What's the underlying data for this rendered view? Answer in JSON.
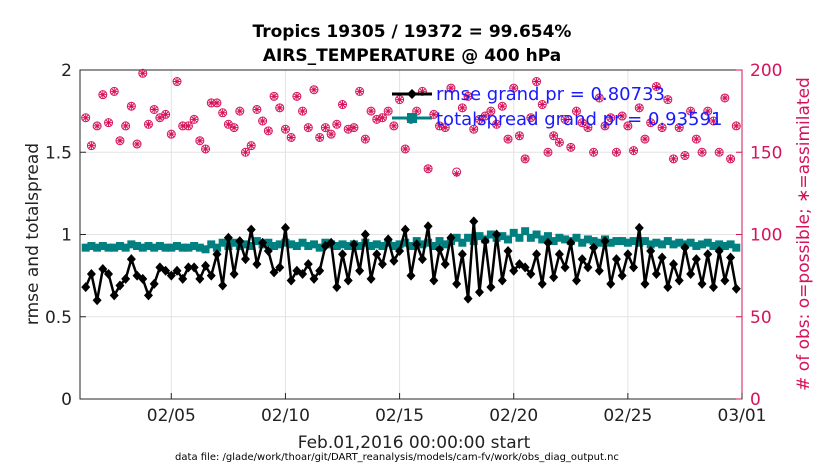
{
  "chart_data": {
    "type": "line",
    "title_line1": "Tropics 19305 / 19372 = 99.654%",
    "title_line2": "AIRS_TEMPERATURE @ 400 hPa",
    "ylabel_left": "rmse and totalspread",
    "ylabel_right": "# of obs: o=possible; ∗=assimilated",
    "xlabel": "Feb.01,2016 00:00:00 start",
    "footnote": "data file: /glade/work/thoar/git/DART_reanalysis/models/cam-fv/work/obs_diag_output.nc",
    "ylim_left": [
      0,
      2
    ],
    "ylim_right": [
      0,
      200
    ],
    "xlim_days": [
      0,
      29
    ],
    "yticks_left": [
      "0",
      "0.5",
      "1",
      "1.5",
      "2"
    ],
    "yticks_right": [
      "0",
      "50",
      "100",
      "150",
      "200"
    ],
    "xticks": [
      {
        "day": 4,
        "label": "02/05"
      },
      {
        "day": 9,
        "label": "02/10"
      },
      {
        "day": 14,
        "label": "02/15"
      },
      {
        "day": 19,
        "label": "02/20"
      },
      {
        "day": 24,
        "label": "02/25"
      },
      {
        "day": 29,
        "label": "03/01"
      }
    ],
    "grid": true,
    "legend_position": "top-right",
    "colors": {
      "rmse": "#000000",
      "totalspread": "#008080",
      "obs": "#d6125a",
      "legend_text": "#1a1aff"
    },
    "series": [
      {
        "name": "rmse grand pr = 0.80733",
        "marker": "diamond",
        "axis": "left",
        "x_start_day": 0.25,
        "x_step_day": 0.25,
        "values": [
          0.68,
          0.76,
          0.6,
          0.79,
          0.76,
          0.63,
          0.69,
          0.73,
          0.85,
          0.75,
          0.73,
          0.63,
          0.7,
          0.8,
          0.78,
          0.75,
          0.78,
          0.73,
          0.8,
          0.8,
          0.73,
          0.81,
          0.75,
          0.88,
          0.69,
          0.98,
          0.76,
          0.96,
          0.85,
          1.03,
          0.82,
          0.95,
          0.9,
          0.77,
          0.8,
          1.04,
          0.72,
          0.78,
          0.76,
          0.82,
          0.73,
          0.78,
          0.93,
          0.95,
          0.68,
          0.88,
          0.72,
          0.94,
          0.78,
          1.0,
          0.73,
          0.88,
          0.82,
          0.97,
          0.84,
          0.9,
          1.03,
          0.75,
          0.94,
          0.85,
          1.05,
          0.72,
          0.91,
          0.82,
          0.98,
          0.7,
          0.88,
          0.61,
          1.08,
          0.65,
          0.96,
          0.68,
          1.0,
          0.72,
          0.9,
          0.78,
          0.82,
          0.8,
          0.76,
          0.88,
          0.7,
          0.95,
          0.74,
          0.88,
          0.8,
          0.95,
          0.72,
          0.85,
          0.8,
          0.92,
          0.78,
          0.96,
          0.7,
          0.85,
          0.75,
          0.88,
          0.8,
          1.04,
          0.7,
          0.9,
          0.76,
          0.86,
          0.68,
          0.82,
          0.72,
          0.92,
          0.76,
          0.85,
          0.7,
          0.88,
          0.68,
          0.9,
          0.72,
          0.86,
          0.67
        ]
      },
      {
        "name": "totalspread grand pr = 0.93591",
        "marker": "square",
        "axis": "left",
        "x_start_day": 0.25,
        "x_step_day": 0.25,
        "values": [
          0.92,
          0.93,
          0.92,
          0.93,
          0.92,
          0.92,
          0.93,
          0.92,
          0.94,
          0.93,
          0.92,
          0.93,
          0.92,
          0.93,
          0.92,
          0.92,
          0.93,
          0.92,
          0.92,
          0.93,
          0.92,
          0.91,
          0.94,
          0.92,
          0.95,
          0.93,
          0.95,
          0.93,
          0.94,
          0.93,
          0.96,
          0.94,
          0.95,
          0.93,
          0.94,
          0.95,
          0.94,
          0.93,
          0.95,
          0.93,
          0.94,
          0.92,
          0.95,
          0.94,
          0.93,
          0.94,
          0.93,
          0.94,
          0.93,
          0.95,
          0.93,
          0.94,
          0.93,
          0.95,
          0.93,
          0.94,
          0.95,
          0.93,
          0.96,
          0.94,
          0.95,
          0.93,
          0.96,
          0.94,
          0.96,
          0.98,
          0.95,
          0.98,
          0.96,
          0.99,
          0.97,
          1.0,
          0.98,
          0.99,
          0.97,
          1.01,
          0.98,
          1.02,
          0.98,
          1.0,
          0.97,
          0.99,
          0.96,
          0.98,
          0.97,
          0.96,
          0.98,
          0.95,
          0.97,
          0.96,
          0.95,
          0.97,
          0.95,
          0.96,
          0.96,
          0.95,
          0.96,
          0.95,
          0.96,
          0.94,
          0.95,
          0.94,
          0.96,
          0.94,
          0.95,
          0.94,
          0.95,
          0.93,
          0.94,
          0.95,
          0.93,
          0.94,
          0.93,
          0.94,
          0.92
        ]
      },
      {
        "name": "obs possible",
        "marker": "circle",
        "axis": "right",
        "x_start_day": 0.25,
        "x_step_day": 0.25,
        "values": [
          171,
          154,
          166,
          185,
          168,
          187,
          157,
          166,
          178,
          155,
          198,
          167,
          176,
          171,
          173,
          161,
          193,
          166,
          166,
          170,
          157,
          152,
          180,
          180,
          174,
          167,
          165,
          175,
          150,
          154,
          176,
          169,
          163,
          184,
          177,
          164,
          159,
          184,
          175,
          165,
          188,
          159,
          165,
          161,
          167,
          179,
          164,
          165,
          187,
          158,
          175,
          170,
          171,
          175,
          166,
          182,
          152,
          170,
          175,
          187,
          140,
          173,
          166,
          165,
          189,
          138,
          177,
          184,
          164,
          170,
          172,
          175,
          167,
          178,
          158,
          189,
          160,
          146,
          171,
          193,
          179,
          150,
          160,
          156,
          170,
          153,
          175,
          168,
          165,
          150,
          183,
          166,
          171,
          150,
          172,
          166,
          151,
          177,
          158,
          168,
          190,
          165,
          182,
          146,
          165,
          148,
          175,
          158,
          150,
          175,
          169,
          150,
          183,
          146,
          166
        ]
      },
      {
        "name": "obs assimilated",
        "marker": "asterisk",
        "axis": "right",
        "x_start_day": 0.25,
        "x_step_day": 0.25,
        "values": [
          171,
          154,
          166,
          185,
          168,
          187,
          157,
          166,
          178,
          155,
          198,
          167,
          176,
          171,
          173,
          161,
          193,
          166,
          166,
          170,
          157,
          152,
          180,
          180,
          174,
          167,
          165,
          175,
          150,
          154,
          176,
          169,
          163,
          184,
          177,
          164,
          159,
          184,
          175,
          165,
          188,
          159,
          165,
          161,
          167,
          179,
          164,
          165,
          187,
          158,
          175,
          170,
          171,
          175,
          166,
          182,
          152,
          170,
          175,
          187,
          140,
          173,
          166,
          165,
          189,
          137,
          177,
          184,
          164,
          170,
          172,
          175,
          167,
          178,
          158,
          189,
          160,
          146,
          171,
          193,
          179,
          150,
          160,
          156,
          170,
          153,
          175,
          168,
          165,
          150,
          183,
          166,
          171,
          150,
          172,
          166,
          151,
          177,
          158,
          168,
          190,
          165,
          182,
          146,
          165,
          148,
          175,
          158,
          150,
          175,
          169,
          150,
          183,
          146,
          166
        ]
      }
    ]
  }
}
